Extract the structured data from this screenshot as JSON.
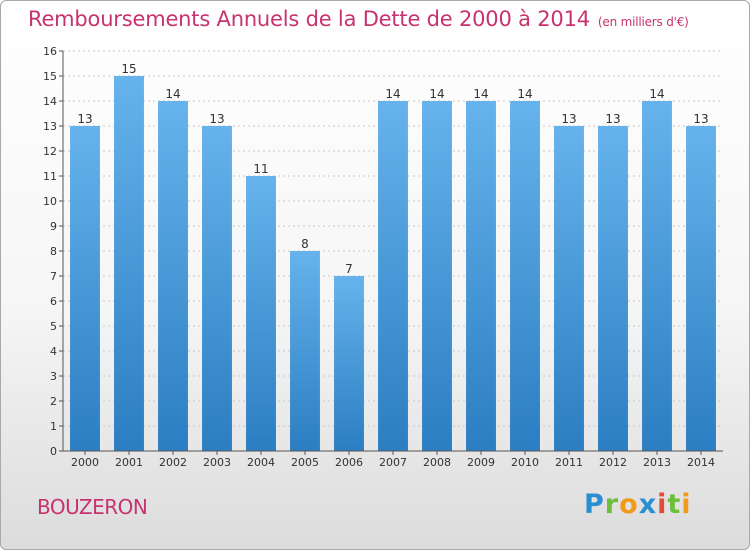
{
  "title": "Remboursements Annuels de la Dette de 2000 à 2014",
  "unit": "(en milliers d'€)",
  "commune": "BOUZERON",
  "logo": "Proxiti",
  "colors": {
    "bar_top": "#66b3ec",
    "bar_bottom": "#2b7ec2",
    "title": "#c8336f",
    "grid": "#c8c8c8"
  },
  "chart_data": {
    "type": "bar",
    "categories": [
      "2000",
      "2001",
      "2002",
      "2003",
      "2004",
      "2005",
      "2006",
      "2007",
      "2008",
      "2009",
      "2010",
      "2011",
      "2012",
      "2013",
      "2014"
    ],
    "values": [
      13,
      15,
      14,
      13,
      11,
      8,
      7,
      14,
      14,
      14,
      14,
      13,
      13,
      14,
      13
    ],
    "ylim": [
      0,
      16
    ],
    "yticks": [
      0,
      1,
      2,
      3,
      4,
      5,
      6,
      7,
      8,
      9,
      10,
      11,
      12,
      13,
      14,
      15,
      16
    ],
    "grid": true,
    "data_labels": true
  }
}
